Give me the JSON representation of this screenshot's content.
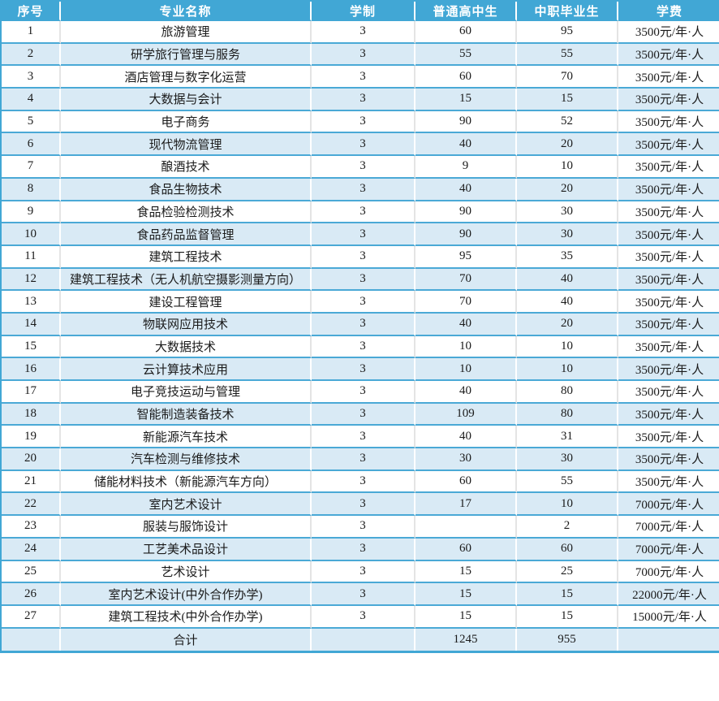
{
  "table": {
    "columns": [
      {
        "key": "index",
        "label": "序号"
      },
      {
        "key": "major",
        "label": "专业名称"
      },
      {
        "key": "duration",
        "label": "学制"
      },
      {
        "key": "regular-hs",
        "label": "普通高中生"
      },
      {
        "key": "vocational",
        "label": "中职毕业生"
      },
      {
        "key": "tuition",
        "label": "学费"
      }
    ],
    "rows": [
      [
        "1",
        "旅游管理",
        "3",
        "60",
        "95",
        "3500元/年·人"
      ],
      [
        "2",
        "研学旅行管理与服务",
        "3",
        "55",
        "55",
        "3500元/年·人"
      ],
      [
        "3",
        "酒店管理与数字化运营",
        "3",
        "60",
        "70",
        "3500元/年·人"
      ],
      [
        "4",
        "大数据与会计",
        "3",
        "15",
        "15",
        "3500元/年·人"
      ],
      [
        "5",
        "电子商务",
        "3",
        "90",
        "52",
        "3500元/年·人"
      ],
      [
        "6",
        "现代物流管理",
        "3",
        "40",
        "20",
        "3500元/年·人"
      ],
      [
        "7",
        "酿酒技术",
        "3",
        "9",
        "10",
        "3500元/年·人"
      ],
      [
        "8",
        "食品生物技术",
        "3",
        "40",
        "20",
        "3500元/年·人"
      ],
      [
        "9",
        "食品检验检测技术",
        "3",
        "90",
        "30",
        "3500元/年·人"
      ],
      [
        "10",
        "食品药品监督管理",
        "3",
        "90",
        "30",
        "3500元/年·人"
      ],
      [
        "11",
        "建筑工程技术",
        "3",
        "95",
        "35",
        "3500元/年·人"
      ],
      [
        "12",
        "建筑工程技术（无人机航空摄影测量方向）",
        "3",
        "70",
        "40",
        "3500元/年·人"
      ],
      [
        "13",
        "建设工程管理",
        "3",
        "70",
        "40",
        "3500元/年·人"
      ],
      [
        "14",
        "物联网应用技术",
        "3",
        "40",
        "20",
        "3500元/年·人"
      ],
      [
        "15",
        "大数据技术",
        "3",
        "10",
        "10",
        "3500元/年·人"
      ],
      [
        "16",
        "云计算技术应用",
        "3",
        "10",
        "10",
        "3500元/年·人"
      ],
      [
        "17",
        "电子竞技运动与管理",
        "3",
        "40",
        "80",
        "3500元/年·人"
      ],
      [
        "18",
        "智能制造装备技术",
        "3",
        "109",
        "80",
        "3500元/年·人"
      ],
      [
        "19",
        "新能源汽车技术",
        "3",
        "40",
        "31",
        "3500元/年·人"
      ],
      [
        "20",
        "汽车检测与维修技术",
        "3",
        "30",
        "30",
        "3500元/年·人"
      ],
      [
        "21",
        "储能材料技术（新能源汽车方向）",
        "3",
        "60",
        "55",
        "3500元/年·人"
      ],
      [
        "22",
        "室内艺术设计",
        "3",
        "17",
        "10",
        "7000元/年·人"
      ],
      [
        "23",
        "服装与服饰设计",
        "3",
        "",
        "2",
        "7000元/年·人"
      ],
      [
        "24",
        "工艺美术品设计",
        "3",
        "60",
        "60",
        "7000元/年·人"
      ],
      [
        "25",
        "艺术设计",
        "3",
        "15",
        "25",
        "7000元/年·人"
      ],
      [
        "26",
        "室内艺术设计(中外合作办学)",
        "3",
        "15",
        "15",
        "22000元/年·人"
      ],
      [
        "27",
        "建筑工程技术(中外合作办学)",
        "3",
        "15",
        "15",
        "15000元/年·人"
      ]
    ],
    "total": {
      "index": "",
      "label": "合计",
      "duration": "",
      "regular_hs": "1245",
      "vocational": "955",
      "tuition": ""
    }
  },
  "colors": {
    "header_bg": "#41a7d5",
    "header_text": "#ffffff",
    "stripe_row_bg": "#d9eaf5",
    "plain_row_bg": "#ffffff",
    "row_separator": "#4aa9d6",
    "divider_on_white": "#e4e4e4",
    "divider_on_blue": "#ffffff",
    "body_text": "#1a1a1a"
  }
}
